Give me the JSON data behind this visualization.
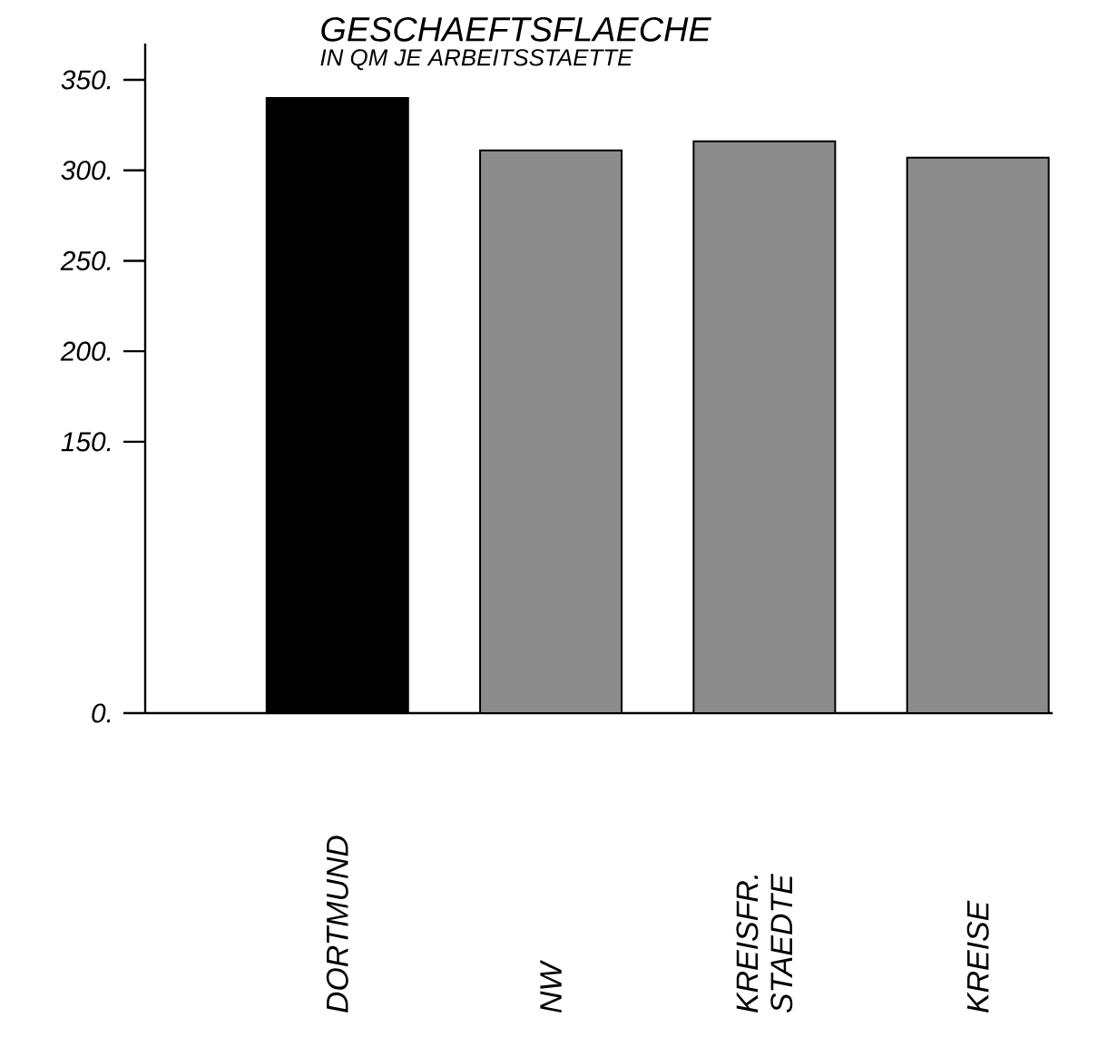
{
  "chart_data": {
    "type": "bar",
    "title": "GESCHAEFTSFLAECHE",
    "subtitle": "IN QM JE ARBEITSSTAETTE",
    "categories": [
      "DORTMUND",
      "NW",
      "KREISFR. STAEDTE",
      "KREISE"
    ],
    "values": [
      340,
      311,
      316,
      307
    ],
    "colors": [
      "#000000",
      "#8c8c8c",
      "#8c8c8c",
      "#8c8c8c"
    ],
    "ylim": [
      0,
      370
    ],
    "yticks": [
      {
        "value": 0,
        "label": "0."
      },
      {
        "value": 150,
        "label": "150."
      },
      {
        "value": 200,
        "label": "200."
      },
      {
        "value": 250,
        "label": "250."
      },
      {
        "value": 300,
        "label": "300."
      },
      {
        "value": 350,
        "label": "350."
      }
    ],
    "grid": false
  }
}
